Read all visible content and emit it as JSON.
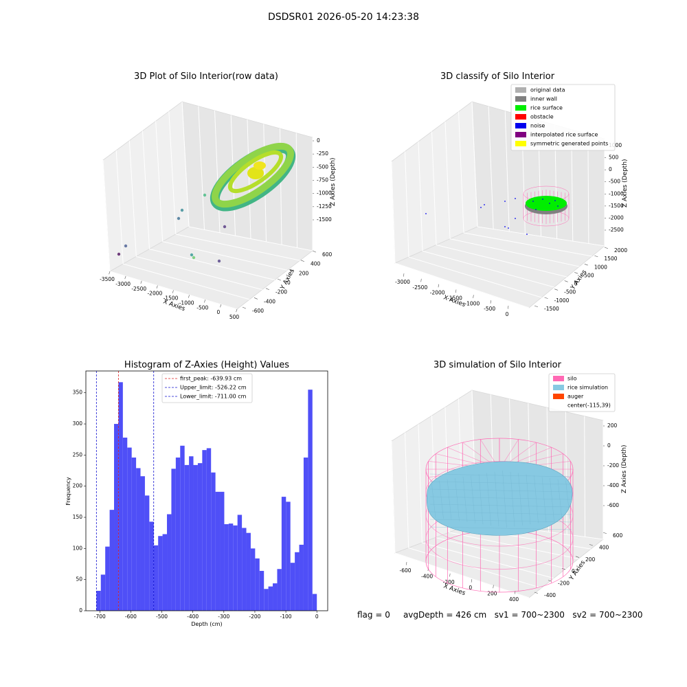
{
  "figure": {
    "suptitle": "DSDSR01 2026-05-20 14:23:38"
  },
  "status_line": {
    "flag": "flag = 0",
    "avg_depth": "avgDepth = 426 cm",
    "sv1": "sv1 = 700~2300",
    "sv2": "sv2 = 700~2300"
  },
  "colors": {
    "hist_bar": "#4f4ff7",
    "first_peak": "#e02020",
    "limits": "#1010d0",
    "silo": "#ff69b4",
    "rice_sim": "#87c9e2",
    "auger": "#ff4500",
    "rice_surface": "#00ee00",
    "noise": "#0000ee",
    "inner_wall": "#808080",
    "original": "#b0b0b0",
    "obstacle": "#ff0000",
    "interpolated": "#800080",
    "symmetric": "#ffff00"
  },
  "chart_data": [
    {
      "type": "scatter",
      "projection": "3d",
      "title": "3D Plot of Silo Interior(row data)",
      "xlabel": "X Axies",
      "ylabel": "Y Axies",
      "zlabel": "Z Axies (Depth)",
      "xticks": [
        "-3500",
        "-3000",
        "-2500",
        "-2000",
        "-1500",
        "-1000",
        "-500",
        "0",
        "500"
      ],
      "yticks": [
        "-600",
        "-400",
        "-200",
        "0",
        "200",
        "400",
        "600"
      ],
      "zticks": [
        "0",
        "-250",
        "-500",
        "-750",
        "-1000",
        "-1250",
        "-1500"
      ],
      "colormap": "viridis",
      "outliers": [
        {
          "x": -3500,
          "y": 600,
          "z": -1600
        },
        {
          "x": -3300,
          "y": 550,
          "z": -1550
        },
        {
          "x": -1500,
          "y": 100,
          "z": -1500
        },
        {
          "x": -1400,
          "y": 80,
          "z": -1500
        },
        {
          "x": -900,
          "y": 50,
          "z": -1450
        },
        {
          "x": -1100,
          "y": -300,
          "z": -1100
        },
        {
          "x": -2600,
          "y": -250,
          "z": -800
        },
        {
          "x": -2500,
          "y": -100,
          "z": -600
        },
        {
          "x": -2200,
          "y": 0,
          "z": -500
        }
      ]
    },
    {
      "type": "scatter",
      "projection": "3d",
      "title": "3D classify of Silo Interior",
      "xlabel": "X Axies",
      "ylabel": "Y Axies",
      "zlabel": "Z Axies (Depth)",
      "xticks": [
        "-3000",
        "-2500",
        "-2000",
        "-1500",
        "-1000",
        "-500",
        "0"
      ],
      "yticks": [
        "-1500",
        "-1000",
        "-500",
        "0",
        "500",
        "1000",
        "1500",
        "2000"
      ],
      "zticks": [
        "1000",
        "500",
        "0",
        "-500",
        "-1000",
        "-1500",
        "-2000",
        "-2500"
      ],
      "legend": {
        "location": "upper right",
        "entries": [
          {
            "label": "original data",
            "color": "#b0b0b0"
          },
          {
            "label": "inner wall",
            "color": "#808080"
          },
          {
            "label": "rice surface",
            "color": "#00ee00"
          },
          {
            "label": "obstacle",
            "color": "#ff0000"
          },
          {
            "label": "noise",
            "color": "#0000ee"
          },
          {
            "label": "interpolated rice surface",
            "color": "#800080"
          },
          {
            "label": "symmetric generated points",
            "color": "#ffff00"
          }
        ]
      }
    },
    {
      "type": "bar",
      "title": "Histogram of Z-Axies (Height) Values",
      "xlabel": "Depth (cm)",
      "ylabel": "Frequency",
      "xlim": [
        -745,
        35
      ],
      "ylim": [
        0,
        385
      ],
      "xticks": [
        -700,
        -600,
        -500,
        -400,
        -300,
        -200,
        -100,
        0
      ],
      "yticks": [
        0,
        50,
        100,
        150,
        200,
        250,
        300,
        350
      ],
      "bin_start": -711,
      "bin_width": 14.22,
      "values": [
        32,
        58,
        103,
        162,
        300,
        367,
        278,
        262,
        246,
        229,
        216,
        185,
        143,
        105,
        120,
        123,
        155,
        228,
        246,
        265,
        234,
        248,
        234,
        237,
        258,
        261,
        222,
        191,
        191,
        139,
        140,
        137,
        154,
        133,
        125,
        100,
        84,
        64,
        35,
        39,
        44,
        67,
        183,
        175,
        77,
        94,
        106,
        246,
        355,
        27
      ],
      "vlines": [
        {
          "label": "first_peak: -639.93 cm",
          "x": -639.93,
          "color": "#e02020"
        },
        {
          "label": "Upper_limit: -526.22 cm",
          "x": -526.22,
          "color": "#1010d0"
        },
        {
          "label": "Lower_limit: -711.00 cm",
          "x": -711.0,
          "color": "#1010d0"
        }
      ]
    },
    {
      "type": "surface",
      "projection": "3d",
      "title": "3D simulation of Silo Interior",
      "xlabel": "X Axies",
      "ylabel": "Y Axies",
      "zlabel": "Z Axies (Depth)",
      "xticks": [
        "-600",
        "-400",
        "-200",
        "0",
        "200",
        "400"
      ],
      "yticks": [
        "-400",
        "-200",
        "0",
        "200",
        "400",
        "600"
      ],
      "zticks": [
        "200",
        "0",
        "-200",
        "-400",
        "-600"
      ],
      "legend": {
        "location": "upper right",
        "entries": [
          {
            "label": "silo",
            "color": "#ff69b4"
          },
          {
            "label": "rice simulation",
            "color": "#87c9e2"
          },
          {
            "label": "auger",
            "color": "#ff4500"
          },
          {
            "label": "center(-115,39)",
            "color": ""
          }
        ]
      }
    }
  ]
}
